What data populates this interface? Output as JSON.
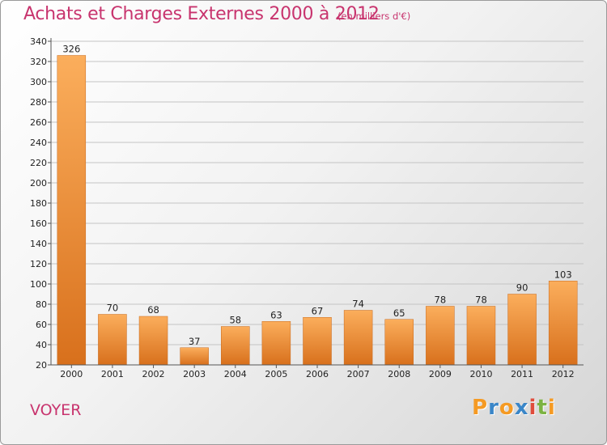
{
  "chart_data": {
    "type": "bar",
    "title": "Achats et Charges Externes 2000 à 2012",
    "subtitle": "(en milliers d'€)",
    "categories": [
      "2000",
      "2001",
      "2002",
      "2003",
      "2004",
      "2005",
      "2006",
      "2007",
      "2008",
      "2009",
      "2010",
      "2011",
      "2012"
    ],
    "values": [
      326,
      70,
      68,
      37,
      58,
      63,
      67,
      74,
      65,
      78,
      78,
      90,
      103
    ],
    "ylim": [
      20,
      340
    ],
    "yticks": [
      20,
      40,
      60,
      80,
      100,
      120,
      140,
      160,
      180,
      200,
      220,
      240,
      260,
      280,
      300,
      320,
      340
    ],
    "grid": true,
    "bar_color_light": "#fbae5c",
    "bar_color_dark": "#d8701c"
  },
  "commune": "VOYER",
  "logo": {
    "letters": [
      "P",
      "r",
      "o",
      "x",
      "i",
      "t",
      "i"
    ],
    "colors": [
      "#f59a23",
      "#3a86c8",
      "#f59a23",
      "#3a86c8",
      "#e04c3c",
      "#7cb342",
      "#f59a23"
    ]
  }
}
